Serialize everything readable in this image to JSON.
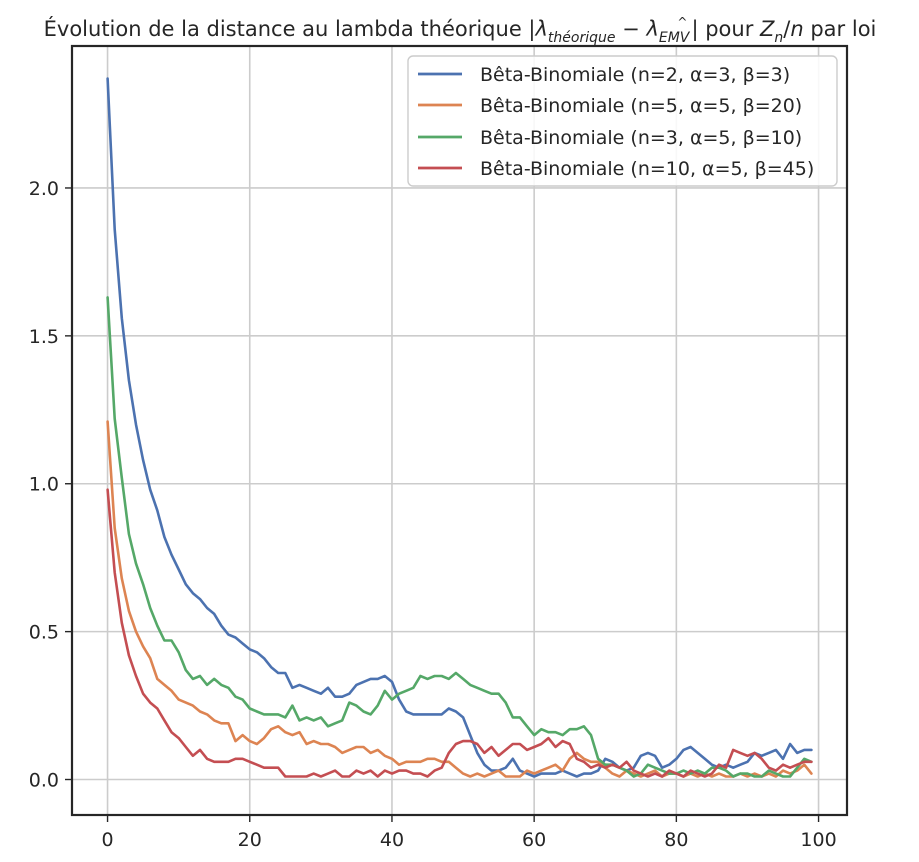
{
  "chart_data": {
    "type": "line",
    "title": "Évolution de la distance au lambda théorique |λ",
    "title_parts": {
      "prefix": "Évolution de la distance au lambda théorique |",
      "lambda1": "λ",
      "sub1": "théorique",
      "minus": " − ",
      "lambda2": "λ",
      "sub2": "EMV",
      "hat": "^",
      "suffix": "| pour ",
      "zn": "Z",
      "zn_sub": "n",
      "slash": "/",
      "n": "n",
      "tail": " par loi"
    },
    "xlabel": "",
    "ylabel": "",
    "xlim": [
      -5,
      104
    ],
    "ylim": [
      -0.12,
      2.48
    ],
    "xticks": [
      0,
      20,
      40,
      60,
      80,
      100
    ],
    "xtick_labels": [
      "0",
      "20",
      "40",
      "60",
      "80",
      "100"
    ],
    "yticks": [
      0.0,
      0.5,
      1.0,
      1.5,
      2.0
    ],
    "ytick_labels": [
      "0.0",
      "0.5",
      "1.0",
      "1.5",
      "2.0"
    ],
    "grid": true,
    "legend_position": "top-right",
    "series": [
      {
        "name": "Bêta-Binomiale (n=2, α=3, β=3)",
        "color": "#4c72b0",
        "values": [
          2.37,
          1.86,
          1.56,
          1.35,
          1.2,
          1.08,
          0.98,
          0.91,
          0.82,
          0.76,
          0.71,
          0.66,
          0.63,
          0.61,
          0.58,
          0.56,
          0.52,
          0.49,
          0.48,
          0.46,
          0.44,
          0.43,
          0.41,
          0.38,
          0.36,
          0.36,
          0.31,
          0.32,
          0.31,
          0.3,
          0.29,
          0.31,
          0.28,
          0.28,
          0.29,
          0.32,
          0.33,
          0.34,
          0.34,
          0.35,
          0.33,
          0.27,
          0.23,
          0.22,
          0.22,
          0.22,
          0.22,
          0.22,
          0.24,
          0.23,
          0.21,
          0.15,
          0.09,
          0.05,
          0.03,
          0.03,
          0.04,
          0.07,
          0.03,
          0.02,
          0.01,
          0.02,
          0.02,
          0.02,
          0.03,
          0.02,
          0.01,
          0.02,
          0.02,
          0.03,
          0.07,
          0.06,
          0.04,
          0.03,
          0.04,
          0.08,
          0.09,
          0.08,
          0.04,
          0.05,
          0.07,
          0.1,
          0.11,
          0.09,
          0.07,
          0.05,
          0.04,
          0.05,
          0.04,
          0.05,
          0.06,
          0.09,
          0.08,
          0.09,
          0.1,
          0.07,
          0.12,
          0.09,
          0.1,
          0.1
        ]
      },
      {
        "name": "Bêta-Binomiale (n=5, α=5, β=20)",
        "color": "#dd8452",
        "values": [
          1.21,
          0.85,
          0.68,
          0.57,
          0.5,
          0.45,
          0.41,
          0.34,
          0.32,
          0.3,
          0.27,
          0.26,
          0.25,
          0.23,
          0.22,
          0.2,
          0.19,
          0.19,
          0.13,
          0.15,
          0.13,
          0.12,
          0.14,
          0.17,
          0.18,
          0.16,
          0.15,
          0.16,
          0.12,
          0.13,
          0.12,
          0.12,
          0.11,
          0.09,
          0.1,
          0.11,
          0.11,
          0.09,
          0.1,
          0.08,
          0.07,
          0.05,
          0.06,
          0.06,
          0.06,
          0.07,
          0.07,
          0.06,
          0.06,
          0.04,
          0.02,
          0.01,
          0.02,
          0.01,
          0.02,
          0.03,
          0.01,
          0.01,
          0.01,
          0.03,
          0.02,
          0.03,
          0.04,
          0.05,
          0.03,
          0.07,
          0.09,
          0.07,
          0.06,
          0.06,
          0.04,
          0.02,
          0.01,
          0.03,
          0.02,
          0.01,
          0.02,
          0.03,
          0.01,
          0.02,
          0.02,
          0.01,
          0.02,
          0.01,
          0.02,
          0.01,
          0.02,
          0.01,
          0.01,
          0.02,
          0.01,
          0.02,
          0.01,
          0.02,
          0.01,
          0.03,
          0.02,
          0.03,
          0.05,
          0.02
        ]
      },
      {
        "name": "Bêta-Binomiale (n=3, α=5, β=10)",
        "color": "#55a868",
        "values": [
          1.63,
          1.22,
          1.02,
          0.83,
          0.73,
          0.66,
          0.58,
          0.52,
          0.47,
          0.47,
          0.43,
          0.37,
          0.34,
          0.35,
          0.32,
          0.34,
          0.32,
          0.31,
          0.28,
          0.27,
          0.24,
          0.23,
          0.22,
          0.22,
          0.22,
          0.21,
          0.25,
          0.2,
          0.21,
          0.2,
          0.21,
          0.18,
          0.19,
          0.2,
          0.26,
          0.25,
          0.23,
          0.22,
          0.25,
          0.3,
          0.27,
          0.29,
          0.3,
          0.31,
          0.35,
          0.34,
          0.35,
          0.35,
          0.34,
          0.36,
          0.34,
          0.32,
          0.31,
          0.3,
          0.29,
          0.29,
          0.26,
          0.21,
          0.21,
          0.18,
          0.15,
          0.17,
          0.16,
          0.16,
          0.15,
          0.17,
          0.17,
          0.18,
          0.15,
          0.07,
          0.05,
          0.05,
          0.04,
          0.03,
          0.01,
          0.02,
          0.05,
          0.04,
          0.03,
          0.02,
          0.02,
          0.03,
          0.02,
          0.03,
          0.02,
          0.04,
          0.04,
          0.03,
          0.01,
          0.02,
          0.02,
          0.01,
          0.01,
          0.03,
          0.02,
          0.01,
          0.01,
          0.04,
          0.07,
          0.06
        ]
      },
      {
        "name": "Bêta-Binomiale (n=10, α=5, β=45)",
        "color": "#c44e52",
        "values": [
          0.98,
          0.7,
          0.53,
          0.42,
          0.35,
          0.29,
          0.26,
          0.24,
          0.2,
          0.16,
          0.14,
          0.11,
          0.08,
          0.1,
          0.07,
          0.06,
          0.06,
          0.06,
          0.07,
          0.07,
          0.06,
          0.05,
          0.04,
          0.04,
          0.04,
          0.01,
          0.01,
          0.01,
          0.01,
          0.02,
          0.01,
          0.02,
          0.03,
          0.01,
          0.01,
          0.03,
          0.02,
          0.03,
          0.01,
          0.03,
          0.02,
          0.03,
          0.03,
          0.02,
          0.02,
          0.01,
          0.03,
          0.04,
          0.09,
          0.12,
          0.13,
          0.13,
          0.12,
          0.09,
          0.11,
          0.08,
          0.1,
          0.12,
          0.12,
          0.1,
          0.11,
          0.12,
          0.14,
          0.11,
          0.13,
          0.12,
          0.07,
          0.06,
          0.04,
          0.05,
          0.04,
          0.05,
          0.04,
          0.06,
          0.03,
          0.02,
          0.01,
          0.02,
          0.01,
          0.03,
          0.02,
          0.01,
          0.03,
          0.02,
          0.01,
          0.02,
          0.05,
          0.04,
          0.1,
          0.09,
          0.08,
          0.09,
          0.07,
          0.04,
          0.03,
          0.05,
          0.04,
          0.05,
          0.06,
          0.06
        ]
      }
    ]
  }
}
